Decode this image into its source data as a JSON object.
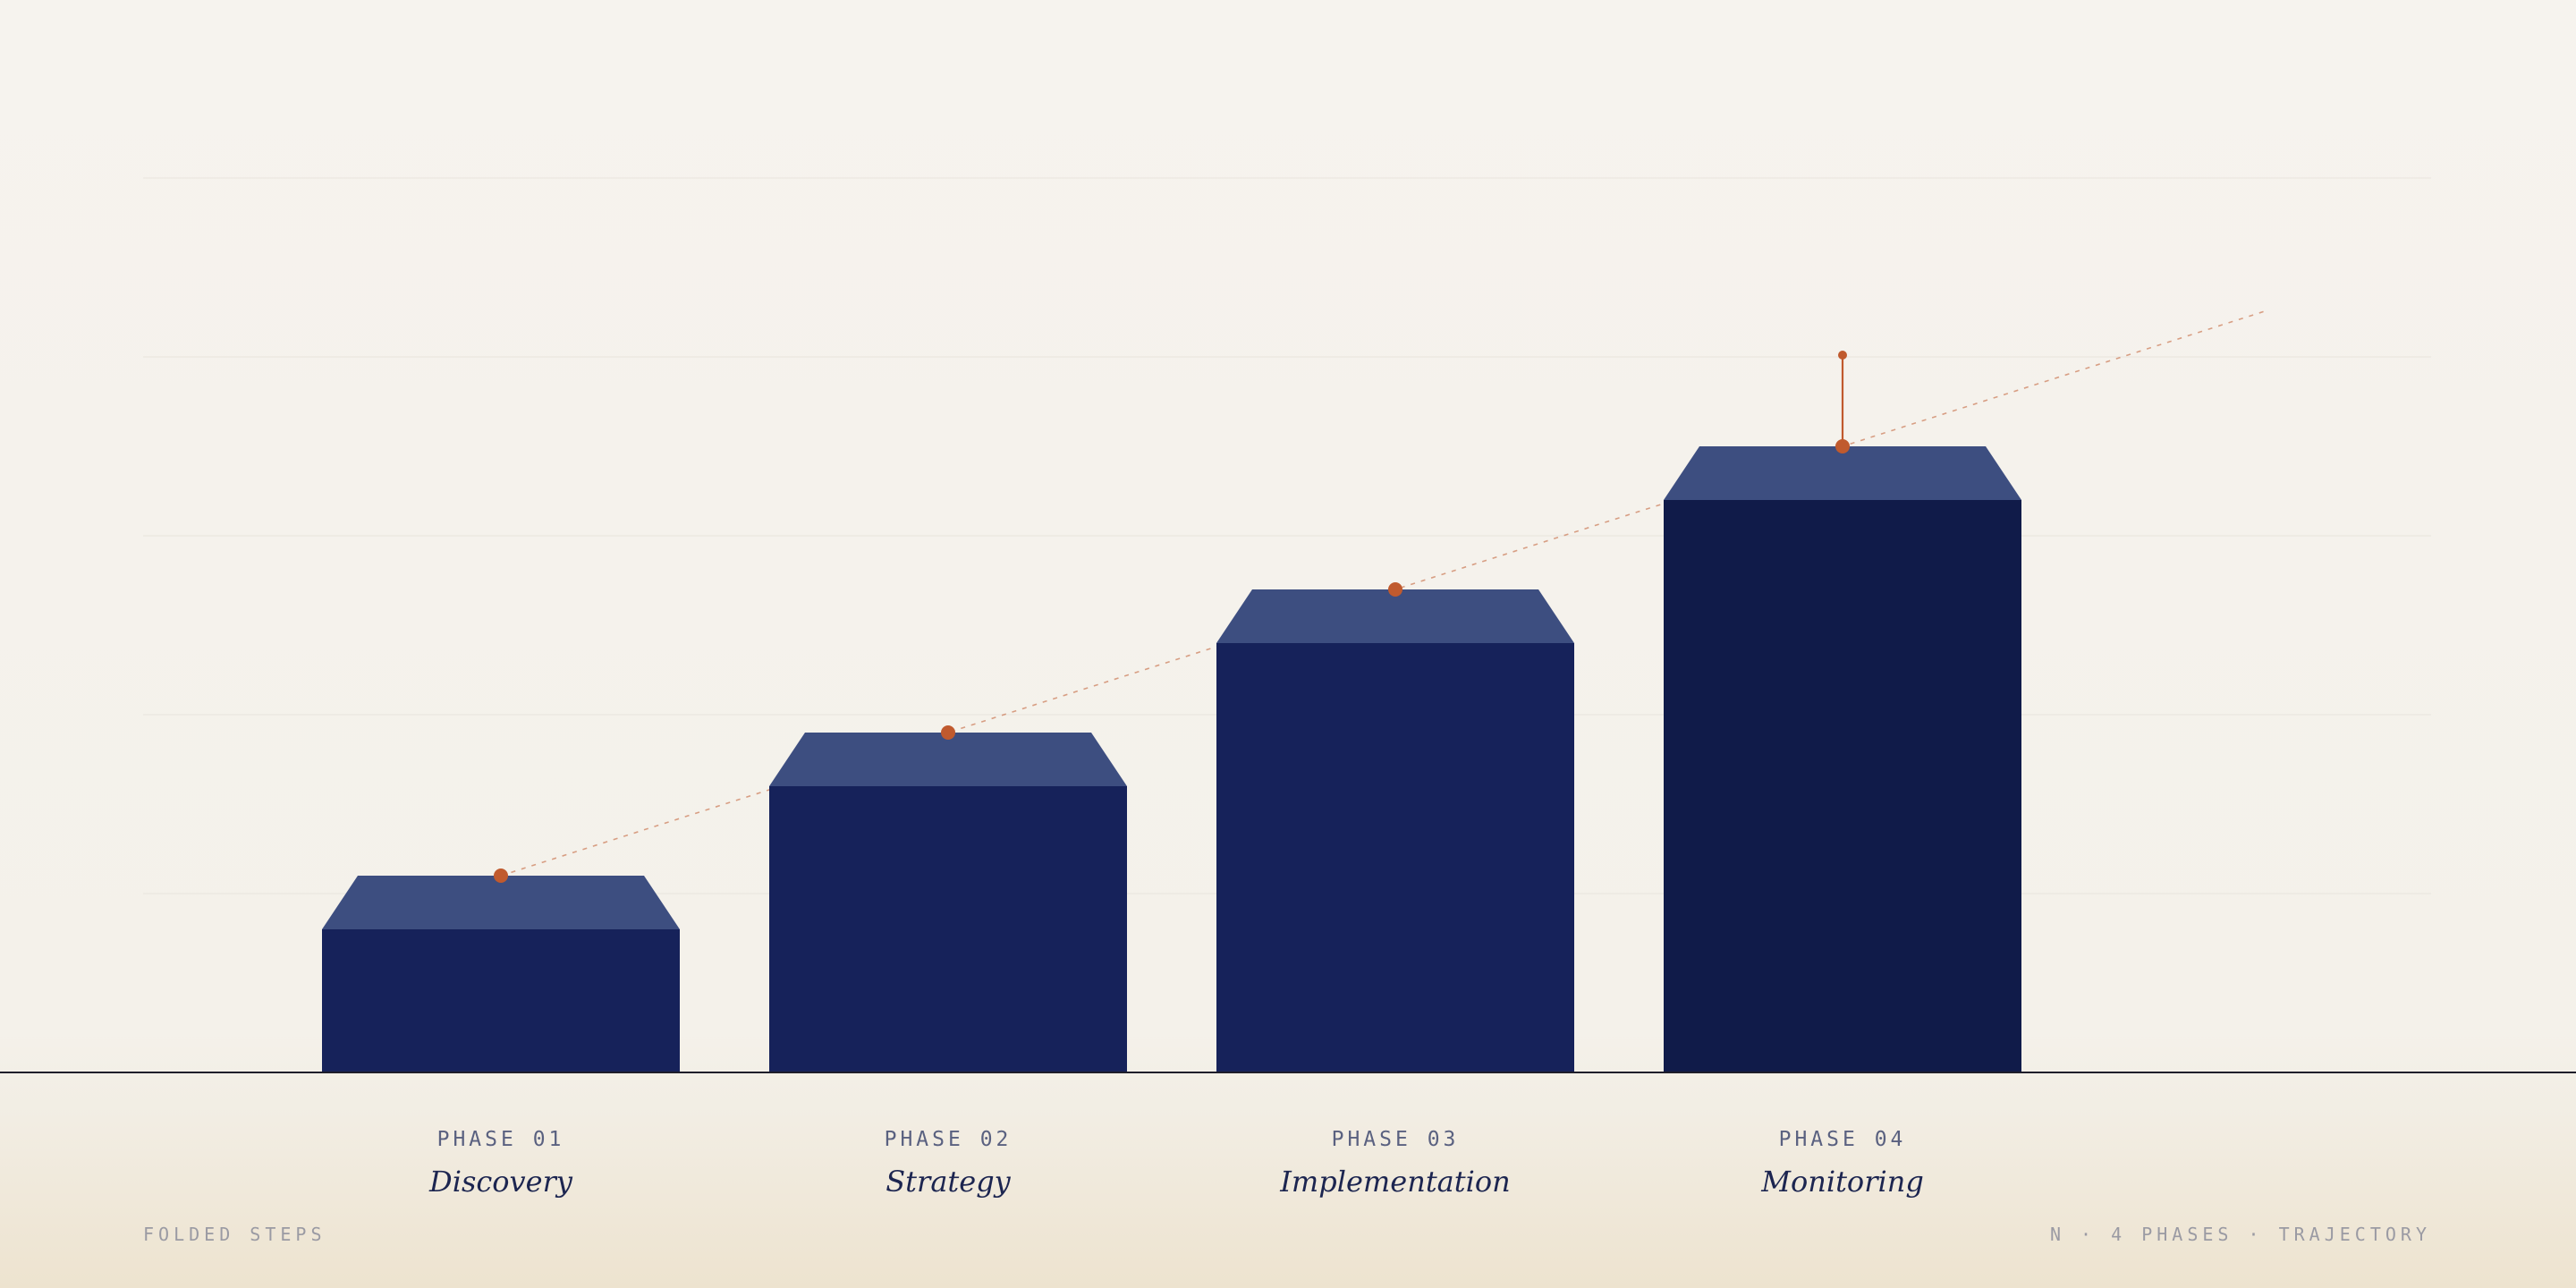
{
  "chart_data": {
    "type": "bar",
    "categories": [
      "Discovery",
      "Strategy",
      "Implementation",
      "Monitoring"
    ],
    "phase_labels": [
      "PHASE 01",
      "PHASE 02",
      "PHASE 03",
      "PHASE 04"
    ],
    "values": [
      1,
      2,
      3,
      4
    ],
    "ylim": [
      0,
      5
    ],
    "grid": true,
    "trend_line": true,
    "highlight_index": 3
  },
  "footer": {
    "left": "FOLDED STEPS",
    "right": "N · 4 PHASES · TRAJECTORY"
  },
  "colors": {
    "bar": "#16225a",
    "bar_highlight": "#101b49",
    "bar_cap": "#3d4e80",
    "accent": "#c05a2e",
    "baseline": "#1e1e2a",
    "gridline": "#ebe7e0"
  }
}
